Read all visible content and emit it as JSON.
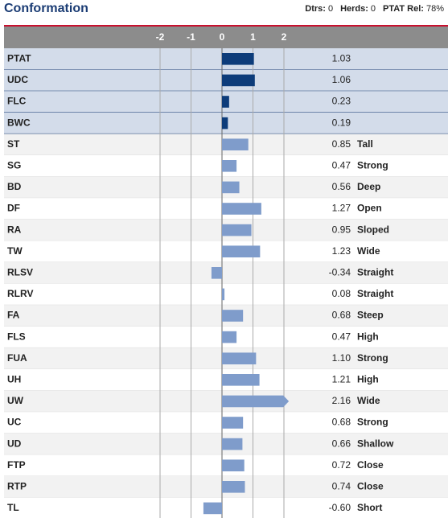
{
  "chart_data": {
    "type": "hbar",
    "title": "Conformation",
    "stats": [
      {
        "label": "Dtrs:",
        "value": "0"
      },
      {
        "label": "Herds:",
        "value": "0"
      },
      {
        "label": "PTAT Rel:",
        "value": "78%"
      }
    ],
    "categories": [
      "PTAT",
      "UDC",
      "FLC",
      "BWC",
      "ST",
      "SG",
      "BD",
      "DF",
      "RA",
      "TW",
      "RLSV",
      "RLRV",
      "FA",
      "FLS",
      "FUA",
      "UH",
      "UW",
      "UC",
      "UD",
      "FTP",
      "RTP",
      "TL"
    ],
    "values": [
      1.03,
      1.06,
      0.23,
      0.19,
      0.85,
      0.47,
      0.56,
      1.27,
      0.95,
      1.23,
      -0.34,
      0.08,
      0.68,
      0.47,
      1.1,
      1.21,
      2.16,
      0.68,
      0.66,
      0.72,
      0.74,
      -0.6
    ],
    "value_labels": [
      "1.03",
      "1.06",
      "0.23",
      "0.19",
      "0.85",
      "0.47",
      "0.56",
      "1.27",
      "0.95",
      "1.23",
      "-0.34",
      "0.08",
      "0.68",
      "0.47",
      "1.10",
      "1.21",
      "2.16",
      "0.68",
      "0.66",
      "0.72",
      "0.74",
      "-0.60"
    ],
    "descriptors": [
      null,
      null,
      null,
      null,
      "Tall",
      "Strong",
      "Deep",
      "Open",
      "Sloped",
      "Wide",
      "Straight",
      "Straight",
      "Steep",
      "High",
      "Strong",
      "High",
      "Wide",
      "Strong",
      "Shallow",
      "Close",
      "Close",
      "Short"
    ],
    "colors": [
      "#0d3c7a",
      "#0d3c7a",
      "#0d3c7a",
      "#0d3c7a",
      "#7f9ccb",
      "#7f9ccb",
      "#7f9ccb",
      "#7f9ccb",
      "#7f9ccb",
      "#7f9ccb",
      "#7f9ccb",
      "#7f9ccb",
      "#7f9ccb",
      "#7f9ccb",
      "#7f9ccb",
      "#7f9ccb",
      "#7f9ccb",
      "#7f9ccb",
      "#7f9ccb",
      "#7f9ccb",
      "#7f9ccb",
      "#7f9ccb"
    ],
    "highlight_color": "#0d3c7a",
    "xlim": [
      -2,
      2
    ],
    "xticks": [
      -2,
      -1,
      0,
      1,
      2
    ],
    "grid": true
  }
}
